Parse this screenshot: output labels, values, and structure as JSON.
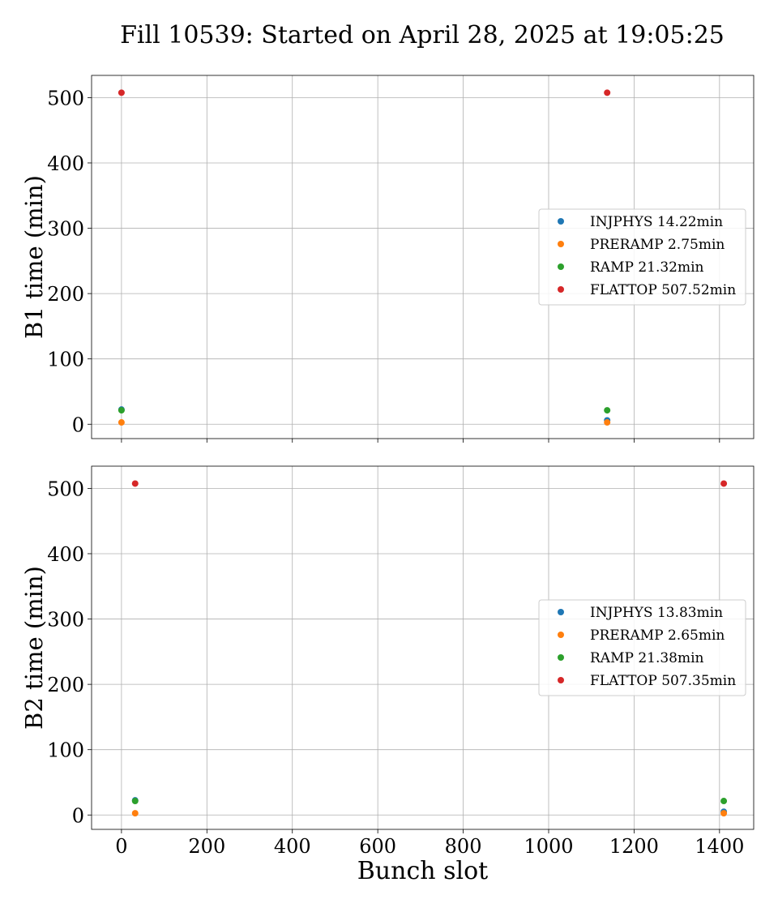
{
  "figure": {
    "title": "Fill 10539: Started on April 28, 2025 at 19:05:25"
  },
  "chart_data": [
    {
      "type": "scatter",
      "ylabel": "B1 time (min)",
      "xlabel": "",
      "xlim": [
        -70,
        1480
      ],
      "ylim": [
        -22,
        534
      ],
      "xticks": [
        0,
        200,
        400,
        600,
        800,
        1000,
        1200,
        1400
      ],
      "yticks": [
        0,
        100,
        200,
        300,
        400,
        500
      ],
      "show_xtick_labels": false,
      "grid": true,
      "legend_position": "center-right",
      "series": [
        {
          "name": "INJPHYS 14.22min",
          "color": "#1f77b4",
          "x": [
            0,
            1137
          ],
          "y": [
            22.5,
            6
          ]
        },
        {
          "name": "PRERAMP 2.75min",
          "color": "#ff7f0e",
          "x": [
            0,
            1137
          ],
          "y": [
            2.75,
            2.75
          ]
        },
        {
          "name": "RAMP 21.32min",
          "color": "#2ca02c",
          "x": [
            0,
            1137
          ],
          "y": [
            21.32,
            21.32
          ]
        },
        {
          "name": "FLATTOP 507.52min",
          "color": "#d62728",
          "x": [
            0,
            1137
          ],
          "y": [
            507.52,
            507.52
          ]
        }
      ]
    },
    {
      "type": "scatter",
      "ylabel": "B2 time (min)",
      "xlabel": "Bunch slot",
      "xlim": [
        -70,
        1480
      ],
      "ylim": [
        -22,
        534
      ],
      "xticks": [
        0,
        200,
        400,
        600,
        800,
        1000,
        1200,
        1400
      ],
      "yticks": [
        0,
        100,
        200,
        300,
        400,
        500
      ],
      "show_xtick_labels": true,
      "grid": true,
      "legend_position": "center-right",
      "series": [
        {
          "name": "INJPHYS 13.83min",
          "color": "#1f77b4",
          "x": [
            32,
            1410
          ],
          "y": [
            22.5,
            5
          ]
        },
        {
          "name": "PRERAMP 2.65min",
          "color": "#ff7f0e",
          "x": [
            32,
            1410
          ],
          "y": [
            2.65,
            2.65
          ]
        },
        {
          "name": "RAMP 21.38min",
          "color": "#2ca02c",
          "x": [
            32,
            1410
          ],
          "y": [
            21.38,
            21.38
          ]
        },
        {
          "name": "FLATTOP 507.35min",
          "color": "#d62728",
          "x": [
            32,
            1410
          ],
          "y": [
            507.35,
            507.35
          ]
        }
      ]
    }
  ]
}
